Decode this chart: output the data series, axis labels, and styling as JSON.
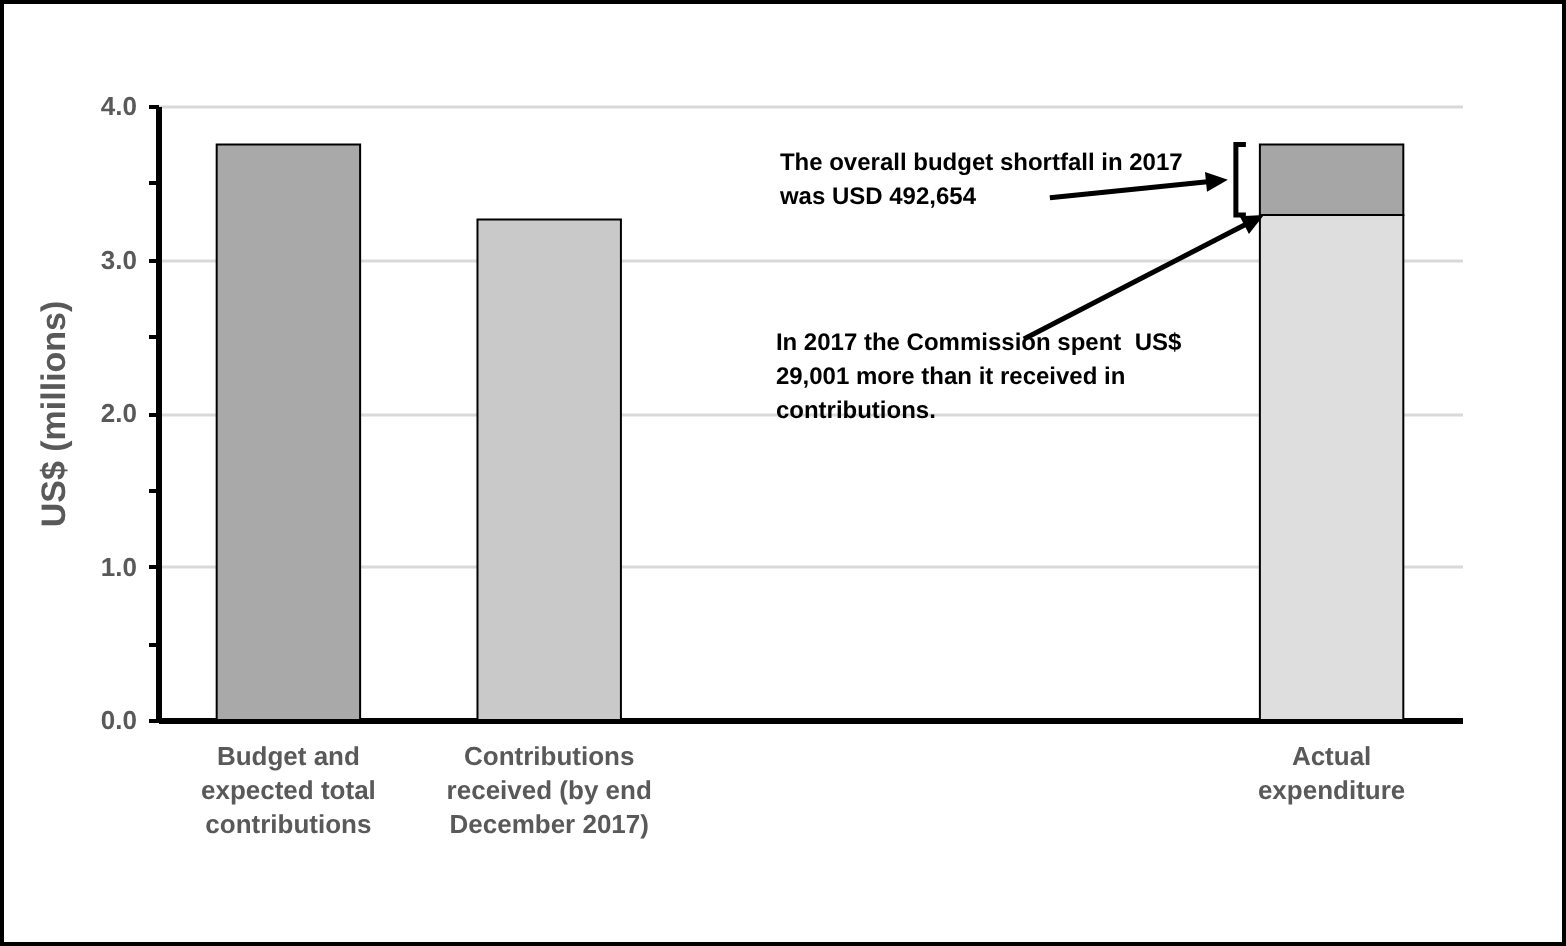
{
  "chart_data": {
    "type": "bar",
    "stacked": true,
    "ylabel": "US$ (millions)",
    "categories": [
      "Budget and expected total contributions",
      "Contributions received (by end December 2017)",
      null,
      null,
      "Actual expenditure"
    ],
    "series": [
      {
        "colors": [
          "#a9a9a9",
          "#c9c9c9",
          null,
          null,
          "#dedede"
        ],
        "values": [
          3.75,
          3.26,
          null,
          null,
          3.29
        ]
      },
      {
        "color": "#a6a6a6",
        "values": [
          null,
          null,
          null,
          null,
          0.46
        ]
      }
    ],
    "ylim": [
      0,
      4
    ],
    "yticks": [
      {
        "value": 0,
        "label": "0.0"
      },
      {
        "value": 0.5,
        "label": null
      },
      {
        "value": 1,
        "label": "1.0"
      },
      {
        "value": 1.5,
        "label": null
      },
      {
        "value": 2,
        "label": "2.0"
      },
      {
        "value": 2.5,
        "label": null
      },
      {
        "value": 3,
        "label": "3.0"
      },
      {
        "value": 3.5,
        "label": null
      },
      {
        "value": 4,
        "label": "4.0"
      }
    ],
    "grid": "y",
    "legend": false,
    "annotations": [
      "The overall budget shortfall in 2017 was USD 492,654",
      "In 2017 the Commission spent  US$ 29,001 more than it received in contributions."
    ]
  }
}
